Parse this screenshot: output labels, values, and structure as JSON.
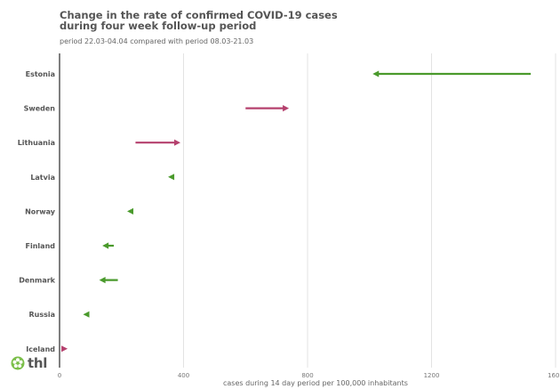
{
  "chart_data": {
    "type": "arrow-dumbbell",
    "title_line1": "Change in the rate of confirmed COVID-19 cases",
    "title_line2": "during four week follow-up period",
    "subtitle": "period 22.03-04.04 compared with period 08.03-21.03",
    "xlabel": "cases during 14 day period per 100,000 inhabitants",
    "xlim": [
      0,
      1600
    ],
    "xticks": [
      0,
      400,
      800,
      1200,
      1600
    ],
    "xtick_labels": [
      "0",
      "400",
      "800",
      "1200",
      "1600"
    ],
    "grid": true,
    "colors": {
      "increase": "#b5416e",
      "decrease": "#4a9a2c"
    },
    "countries": [
      {
        "name": "Estonia",
        "start": 1520,
        "end": 1010
      },
      {
        "name": "Sweden",
        "start": 600,
        "end": 740
      },
      {
        "name": "Lithuania",
        "start": 245,
        "end": 390
      },
      {
        "name": "Latvia",
        "start": 368,
        "end": 350
      },
      {
        "name": "Norway",
        "start": 232,
        "end": 218
      },
      {
        "name": "Finland",
        "start": 175,
        "end": 138
      },
      {
        "name": "Denmark",
        "start": 188,
        "end": 128
      },
      {
        "name": "Russia",
        "start": 92,
        "end": 76
      },
      {
        "name": "Iceland",
        "start": 10,
        "end": 26
      }
    ]
  },
  "logo": {
    "text": "thl",
    "icon": "thl-flower-icon",
    "color": "#7bbf4a"
  }
}
